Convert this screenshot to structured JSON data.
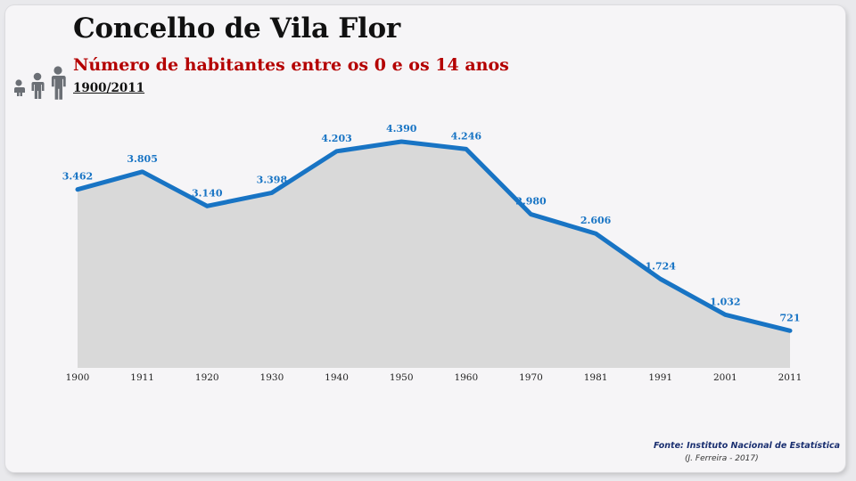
{
  "header": {
    "title": "Concelho de Vila Flor",
    "subtitle": "Número de habitantes entre os 0 e os 14 anos",
    "period": "1900/2011"
  },
  "icons": [
    "baby-icon",
    "child-icon",
    "teen-icon"
  ],
  "colors": {
    "line": "#1874c4",
    "area": "#d9d9d9",
    "label": "#1874c4",
    "title": "#111111",
    "subtitle": "#b40000",
    "icon": "#6b6f75"
  },
  "chart_data": {
    "type": "area",
    "categories": [
      "1900",
      "1911",
      "1920",
      "1930",
      "1940",
      "1950",
      "1960",
      "1970",
      "1981",
      "1991",
      "2001",
      "2011"
    ],
    "values": [
      3462,
      3805,
      3140,
      3398,
      4203,
      4390,
      4246,
      2980,
      2606,
      1724,
      1032,
      721
    ],
    "data_labels": [
      "3.462",
      "3.805",
      "3.140",
      "3.398",
      "4.203",
      "4.390",
      "4.246",
      "2.980",
      "2.606",
      "1.724",
      "1.032",
      "721"
    ],
    "ylim": [
      0,
      4390
    ],
    "grid": false,
    "legend": "none"
  },
  "footer": {
    "source": "Fonte: Instituto Nacional de Estatística",
    "author": "(J. Ferreira - 2017)"
  }
}
